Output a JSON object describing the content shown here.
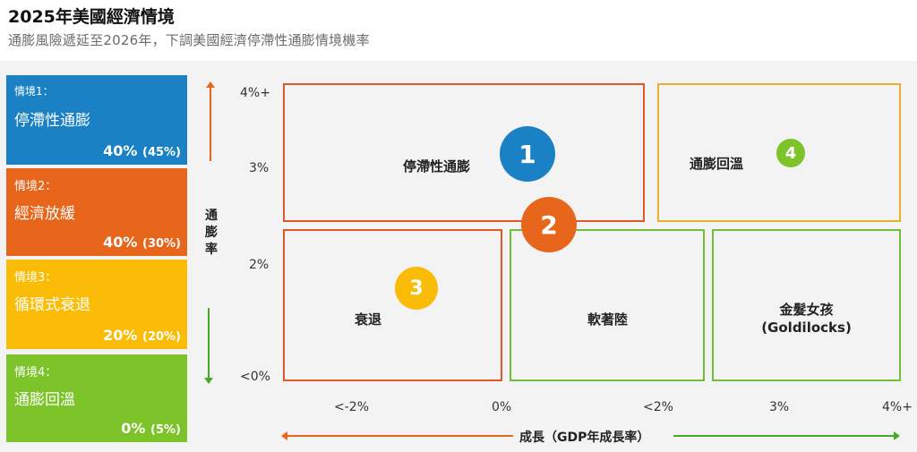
{
  "header": {
    "title": "2025年美國經濟情境",
    "subtitle": "通膨風險遞延至2026年，下調美國經濟停滯性通膨情境機率"
  },
  "scenarios": [
    {
      "label": "情境1：",
      "name": "停滯性通膨",
      "prob": "40%",
      "prev": "(45%)",
      "color": "#1a82c4"
    },
    {
      "label": "情境2：",
      "name": "經濟放緩",
      "prob": "40%",
      "prev": "(30%)",
      "color": "#e8661c"
    },
    {
      "label": "情境3：",
      "name": "循環式衰退",
      "prob": "20%",
      "prev": "(20%)",
      "color": "#fbbc07"
    },
    {
      "label": "情境4：",
      "name": "通膨回溫",
      "prob": "0%",
      "prev": "(5%)",
      "color": "#7cc42a"
    }
  ],
  "axes": {
    "y_label": "通膨率",
    "y_ticks": [
      "4%+",
      "3%",
      "2%",
      "<0%"
    ],
    "x_label": "成長（GDP年成長率）",
    "x_ticks": [
      "<-2%",
      "0%",
      "<2%",
      "3%",
      "4%+"
    ]
  },
  "zones": {
    "stagflation": "停滯性通膨",
    "reheating": "通膨回溫",
    "recession": "衰退",
    "soft_landing": "軟著陸",
    "goldilocks_line1": "金髮女孩",
    "goldilocks_line2": "(Goldilocks)"
  },
  "badges": [
    "1",
    "2",
    "3",
    "4"
  ]
}
